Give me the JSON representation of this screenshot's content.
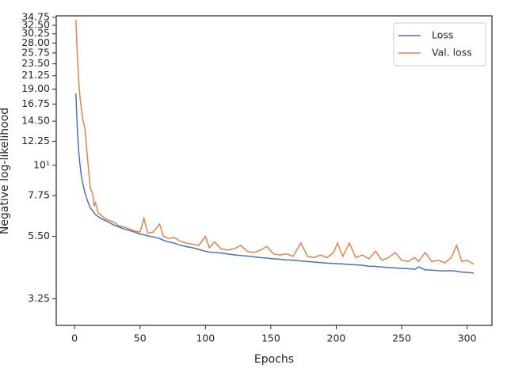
{
  "chart_data": {
    "type": "line",
    "x_label": "Epochs",
    "y_label": "Negative log-likelihood",
    "x": [
      1,
      2,
      3,
      4,
      5,
      6,
      8,
      10,
      12,
      14,
      15,
      16,
      18,
      20,
      23,
      26,
      30,
      34,
      38,
      42,
      46,
      50,
      53,
      56,
      60,
      65,
      68,
      72,
      76,
      80,
      85,
      90,
      95,
      100,
      103,
      107,
      112,
      117,
      122,
      127,
      132,
      137,
      142,
      147,
      152,
      157,
      162,
      167,
      173,
      178,
      183,
      188,
      193,
      198,
      201,
      205,
      210,
      215,
      220,
      225,
      230,
      235,
      240,
      245,
      250,
      255,
      260,
      263,
      268,
      273,
      278,
      283,
      288,
      292,
      296,
      300,
      305
    ],
    "series": [
      {
        "name": "Loss",
        "color": "#4c72b0",
        "values": [
          18.3,
          14,
          11.5,
          10.2,
          9.3,
          8.7,
          7.9,
          7.4,
          7.0,
          6.8,
          6.7,
          6.6,
          6.5,
          6.4,
          6.3,
          6.2,
          6.05,
          5.95,
          5.85,
          5.78,
          5.7,
          5.6,
          5.58,
          5.52,
          5.48,
          5.4,
          5.32,
          5.25,
          5.2,
          5.12,
          5.05,
          5.0,
          4.93,
          4.85,
          4.82,
          4.8,
          4.78,
          4.74,
          4.71,
          4.68,
          4.66,
          4.63,
          4.6,
          4.58,
          4.55,
          4.54,
          4.51,
          4.5,
          4.47,
          4.45,
          4.43,
          4.41,
          4.39,
          4.38,
          4.37,
          4.36,
          4.34,
          4.33,
          4.31,
          4.28,
          4.27,
          4.25,
          4.23,
          4.22,
          4.2,
          4.19,
          4.17,
          4.25,
          4.15,
          4.14,
          4.12,
          4.11,
          4.12,
          4.1,
          4.07,
          4.06,
          4.04
        ]
      },
      {
        "name": "Val. loss",
        "color": "#dd8452",
        "values": [
          34,
          26,
          21,
          18,
          16.5,
          15,
          13.5,
          10.5,
          8.3,
          7.8,
          7.1,
          7.3,
          6.7,
          6.6,
          6.4,
          6.3,
          6.2,
          6.0,
          5.95,
          5.85,
          5.75,
          5.7,
          6.4,
          5.65,
          5.7,
          6.1,
          5.5,
          5.4,
          5.45,
          5.3,
          5.2,
          5.15,
          5.1,
          5.5,
          5.0,
          5.25,
          4.95,
          4.9,
          4.95,
          5.1,
          4.85,
          4.8,
          4.9,
          5.05,
          4.75,
          4.7,
          4.75,
          4.65,
          5.2,
          4.65,
          4.6,
          4.7,
          4.6,
          4.8,
          5.2,
          4.65,
          5.2,
          4.6,
          4.7,
          4.55,
          4.85,
          4.5,
          4.6,
          4.8,
          4.5,
          4.45,
          4.6,
          4.45,
          4.8,
          4.45,
          4.5,
          4.4,
          4.6,
          5.1,
          4.45,
          4.5,
          4.35
        ]
      }
    ],
    "xlim": [
      -14,
      319
    ],
    "xticks": [
      0,
      50,
      100,
      150,
      200,
      250,
      300
    ],
    "ylim": [
      2.6,
      35.2
    ],
    "y_scale": "log",
    "yticks": [
      3.25,
      {
        "value": 5.5,
        "label": "5.50"
      },
      7.75,
      {
        "value": 10,
        "label": "10¹"
      },
      12.25,
      {
        "value": 14.5,
        "label": "14.50"
      },
      16.75,
      {
        "value": 19,
        "label": "19.00"
      },
      21.25,
      {
        "value": 23.5,
        "label": "23.50"
      },
      25.75,
      {
        "value": 28,
        "label": "28.00"
      },
      30.25,
      {
        "value": 32.5,
        "label": "32.50"
      },
      34.75
    ],
    "grid": false,
    "legend": "upper right"
  }
}
